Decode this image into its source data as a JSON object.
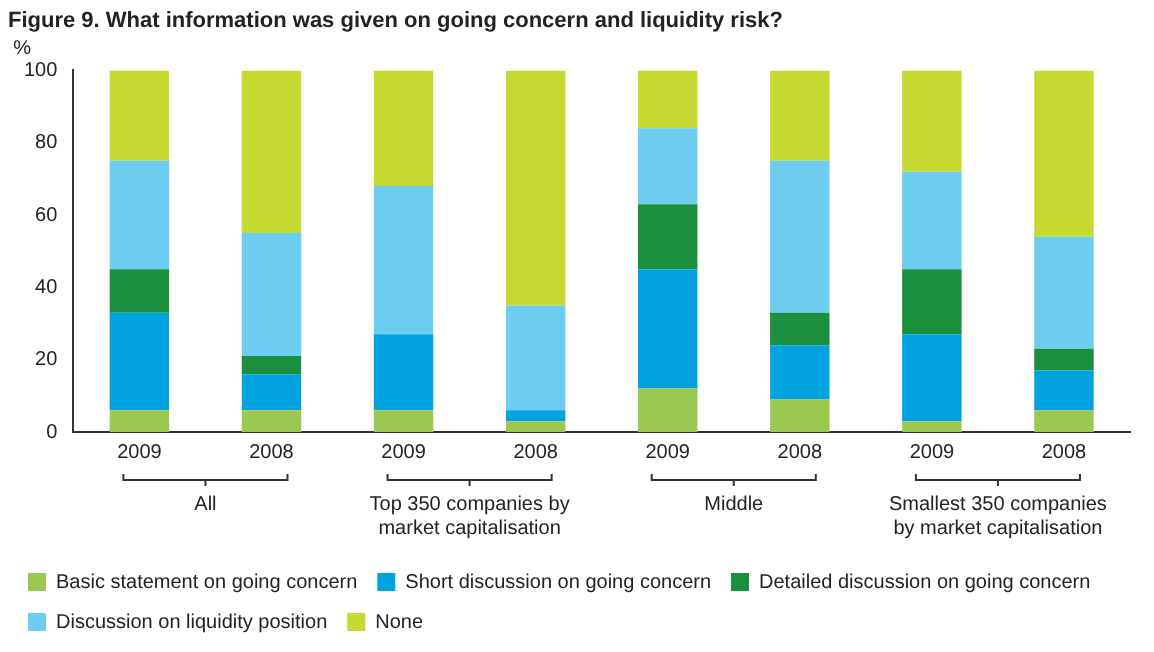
{
  "chart_data": {
    "type": "bar",
    "title": "Figure 9. What information was given on going concern and liquidity risk?",
    "ylabel": "%",
    "stacked": true,
    "categories": [
      "2009",
      "2008",
      "2009",
      "2008",
      "2009",
      "2008",
      "2009",
      "2008"
    ],
    "series": [
      {
        "name": "Basic statement on going concern",
        "color": "#9bc850",
        "values": [
          6,
          6,
          6,
          3,
          12,
          9,
          3,
          6
        ]
      },
      {
        "name": "Short discussion on going concern",
        "color": "#00a3e0",
        "values": [
          27,
          10,
          21,
          3,
          33,
          15,
          24,
          11
        ]
      },
      {
        "name": "Detailed discussion on going concern",
        "color": "#1a8f3e",
        "values": [
          12,
          5,
          0,
          0,
          18,
          9,
          18,
          6
        ]
      },
      {
        "name": "Discussion on liquidity position",
        "color": "#6ccdf0",
        "values": [
          30,
          34,
          41,
          29,
          21,
          42,
          27,
          31
        ]
      },
      {
        "name": "None",
        "color": "#c5d931",
        "values": [
          25,
          45,
          32,
          65,
          16,
          25,
          28,
          46
        ]
      }
    ],
    "ylim": [
      0,
      100
    ],
    "yticks": [
      0,
      20,
      40,
      60,
      80,
      100
    ],
    "grid": false,
    "legend": "bottom",
    "annotations": [
      "All",
      "Top 350 companies by market capitalisation",
      "Middle",
      "Smallest 350 companies by market capitalisation"
    ]
  }
}
